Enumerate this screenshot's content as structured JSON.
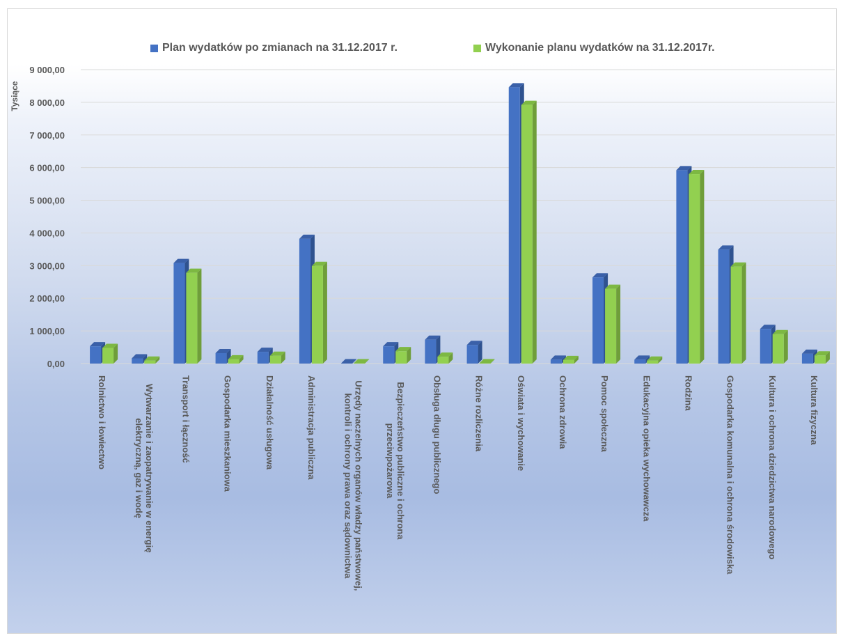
{
  "chart_data": {
    "type": "bar",
    "legend": {
      "position": "top"
    },
    "ylabel": "Tysiące",
    "ylim": [
      0,
      9000
    ],
    "ytick_labels": [
      "0,00",
      "1 000,00",
      "2 000,00",
      "3 000,00",
      "4 000,00",
      "5 000,00",
      "6 000,00",
      "7 000,00",
      "8 000,00",
      "9 000,00"
    ],
    "grid": true,
    "categories": [
      [
        "Rolnictwo i łowiectwo"
      ],
      [
        "Wytwarzanie i zaopatrywanie w energię",
        "elektryczną, gaz i wodę"
      ],
      [
        "Transport i łączność"
      ],
      [
        "Gospodarka mieszkaniowa"
      ],
      [
        "Działalność usługowa"
      ],
      [
        "Administracja publiczna"
      ],
      [
        "Urzędy naczelnych organów władzy państwowej,",
        "kontroli i ochrony prawa oraz sądownictwa"
      ],
      [
        "Bezpieczeństwo publiczne i ochrona",
        "przeciwpożarowa"
      ],
      [
        "Obsługa długu publicznego"
      ],
      [
        "Różne rozliczenia"
      ],
      [
        "Oświata i wychowanie"
      ],
      [
        "Ochrona zdrowia"
      ],
      [
        "Pomoc społeczna"
      ],
      [
        "Edukacyjna opieka wychowawcza"
      ],
      [
        "Rodzina"
      ],
      [
        "Gospodarka komunalna i ochrona środowiska"
      ],
      [
        "Kultura i ochrona dziedzictwa narodowego"
      ],
      [
        "Kultura fizyczna"
      ]
    ],
    "series": [
      {
        "name": "Plan wydatków po zmianach na 31.12.2017 r.",
        "color": "#4472c4",
        "values": [
          530,
          160,
          3080,
          320,
          360,
          3820,
          10,
          530,
          730,
          570,
          8460,
          120,
          2640,
          120,
          5920,
          3490,
          1060,
          300
        ]
      },
      {
        "name": "Wykonanie planu wydatków na 31.12.2017r.",
        "color": "#92d050",
        "values": [
          480,
          90,
          2780,
          130,
          240,
          2990,
          10,
          380,
          210,
          5,
          7920,
          110,
          2290,
          90,
          5800,
          2970,
          900,
          250
        ]
      }
    ]
  }
}
